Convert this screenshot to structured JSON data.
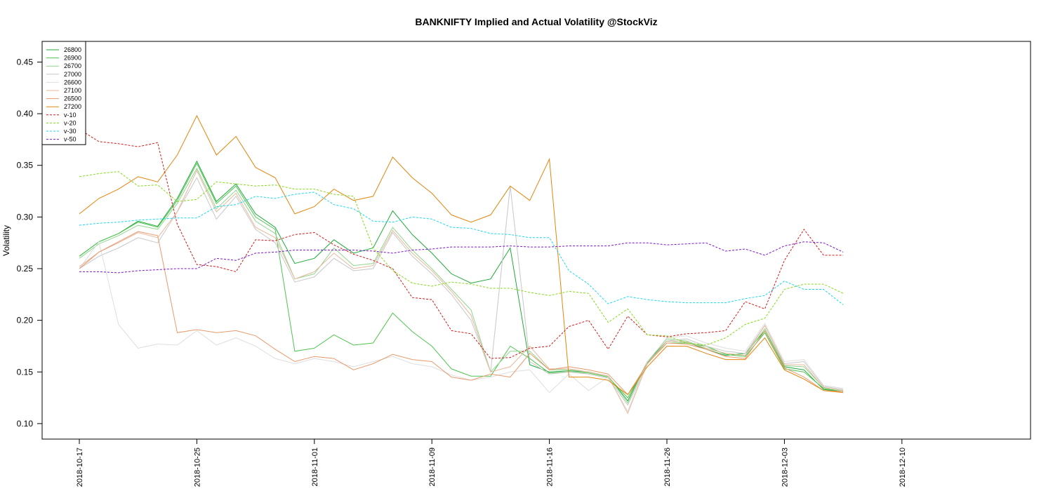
{
  "chart_data": {
    "type": "line",
    "title": "BANKNIFTY Implied and Actual Volatility @StockViz",
    "xlabel": "",
    "ylabel": "Volatility",
    "ylim": [
      0.085,
      0.47
    ],
    "y_ticks": [
      "0.10",
      "0.15",
      "0.20",
      "0.25",
      "0.30",
      "0.35",
      "0.40",
      "0.45"
    ],
    "y_tick_values": [
      0.1,
      0.15,
      0.2,
      0.25,
      0.3,
      0.35,
      0.4,
      0.45
    ],
    "x_ticks": [
      "2018-10-17",
      "2018-10-25",
      "2018-11-01",
      "2018-11-09",
      "2018-11-16",
      "2018-11-26",
      "2018-12-03",
      "2018-12-10"
    ],
    "x_tick_index": [
      0,
      6,
      12,
      18,
      24,
      30,
      36,
      42
    ],
    "grid": false,
    "legend_position": "top-left",
    "series": [
      {
        "name": "26800",
        "color": "#1faa3a",
        "dash": "solid",
        "values": [
          0.262,
          0.276,
          0.284,
          0.296,
          0.291,
          0.318,
          0.354,
          0.315,
          0.332,
          0.303,
          0.29,
          0.255,
          0.26,
          0.278,
          0.265,
          0.27,
          0.306,
          0.283,
          0.265,
          0.245,
          0.236,
          0.24,
          0.27,
          0.157,
          0.15,
          0.151,
          0.15,
          0.146,
          0.122,
          0.16,
          0.18,
          0.179,
          0.172,
          0.166,
          0.168,
          0.19,
          0.155,
          0.152,
          0.133,
          0.131
        ]
      },
      {
        "name": "26900",
        "color": "#4fc44f",
        "dash": "solid",
        "values": [
          0.262,
          0.276,
          0.284,
          0.295,
          0.29,
          0.316,
          0.352,
          0.313,
          0.33,
          0.3,
          0.288,
          0.17,
          0.173,
          0.186,
          0.176,
          0.178,
          0.207,
          0.189,
          0.175,
          0.153,
          0.146,
          0.146,
          0.175,
          0.163,
          0.149,
          0.15,
          0.149,
          0.145,
          0.125,
          0.159,
          0.178,
          0.178,
          0.175,
          0.167,
          0.165,
          0.188,
          0.153,
          0.15,
          0.134,
          0.131
        ]
      },
      {
        "name": "26700",
        "color": "#8fd68f",
        "dash": "solid",
        "values": [
          0.26,
          0.274,
          0.282,
          0.292,
          0.288,
          0.313,
          0.347,
          0.308,
          0.326,
          0.296,
          0.284,
          0.24,
          0.245,
          0.27,
          0.253,
          0.255,
          0.29,
          0.268,
          0.25,
          0.23,
          0.21,
          0.15,
          0.17,
          0.17,
          0.152,
          0.152,
          0.15,
          0.146,
          0.12,
          0.16,
          0.182,
          0.18,
          0.173,
          0.168,
          0.166,
          0.192,
          0.156,
          0.155,
          0.135,
          0.132
        ]
      },
      {
        "name": "27000",
        "color": "#c7c7c7",
        "dash": "solid",
        "values": [
          0.25,
          0.262,
          0.27,
          0.28,
          0.275,
          0.305,
          0.338,
          0.298,
          0.32,
          0.288,
          0.275,
          0.237,
          0.242,
          0.26,
          0.248,
          0.25,
          0.285,
          0.262,
          0.245,
          0.225,
          0.2,
          0.15,
          0.33,
          0.16,
          0.148,
          0.15,
          0.148,
          0.144,
          0.118,
          0.158,
          0.18,
          0.182,
          0.175,
          0.17,
          0.168,
          0.195,
          0.158,
          0.16,
          0.136,
          0.133
        ]
      },
      {
        "name": "26600",
        "color": "#dedede",
        "dash": "solid",
        "values": [
          0.25,
          0.276,
          0.196,
          0.173,
          0.177,
          0.176,
          0.19,
          0.176,
          0.183,
          0.175,
          0.163,
          0.158,
          0.163,
          0.16,
          0.155,
          0.16,
          0.165,
          0.158,
          0.155,
          0.147,
          0.142,
          0.145,
          0.15,
          0.152,
          0.13,
          0.148,
          0.132,
          0.145,
          0.112,
          0.16,
          0.183,
          0.185,
          0.178,
          0.173,
          0.17,
          0.197,
          0.16,
          0.162,
          0.137,
          0.134
        ]
      },
      {
        "name": "27100",
        "color": "#e6b89c",
        "dash": "solid",
        "values": [
          0.252,
          0.266,
          0.275,
          0.285,
          0.28,
          0.305,
          0.345,
          0.305,
          0.323,
          0.29,
          0.28,
          0.24,
          0.247,
          0.265,
          0.25,
          0.253,
          0.287,
          0.265,
          0.248,
          0.228,
          0.205,
          0.15,
          0.155,
          0.175,
          0.153,
          0.153,
          0.15,
          0.146,
          0.11,
          0.158,
          0.18,
          0.179,
          0.173,
          0.168,
          0.166,
          0.195,
          0.157,
          0.157,
          0.135,
          0.132
        ]
      },
      {
        "name": "26500",
        "color": "#e89a6e",
        "dash": "solid",
        "values": [
          0.25,
          0.266,
          0.276,
          0.286,
          0.282,
          0.188,
          0.191,
          0.188,
          0.19,
          0.185,
          0.172,
          0.16,
          0.165,
          0.163,
          0.152,
          0.158,
          0.167,
          0.162,
          0.16,
          0.145,
          0.142,
          0.148,
          0.145,
          0.168,
          0.152,
          0.155,
          0.152,
          0.148,
          0.128,
          0.158,
          0.178,
          0.177,
          0.172,
          0.165,
          0.163,
          0.19,
          0.154,
          0.145,
          0.132,
          0.131
        ]
      },
      {
        "name": "27200",
        "color": "#e3850e",
        "dash": "solid",
        "values": [
          0.303,
          0.318,
          0.327,
          0.339,
          0.334,
          0.36,
          0.398,
          0.36,
          0.378,
          0.348,
          0.338,
          0.303,
          0.31,
          0.327,
          0.316,
          0.32,
          0.358,
          0.338,
          0.323,
          0.302,
          0.295,
          0.302,
          0.33,
          0.316,
          0.356,
          0.145,
          0.145,
          0.142,
          0.128,
          0.155,
          0.175,
          0.175,
          0.168,
          0.162,
          0.162,
          0.183,
          0.152,
          0.143,
          0.132,
          0.13
        ]
      },
      {
        "name": "v-10",
        "color": "#d21919",
        "dash": "dash",
        "values": [
          0.385,
          0.373,
          0.371,
          0.368,
          0.372,
          0.293,
          0.254,
          0.252,
          0.247,
          0.278,
          0.277,
          0.283,
          0.285,
          0.273,
          0.264,
          0.258,
          0.25,
          0.222,
          0.22,
          0.19,
          0.187,
          0.163,
          0.164,
          0.173,
          0.175,
          0.194,
          0.2,
          0.172,
          0.204,
          0.186,
          0.184,
          0.187,
          0.188,
          0.19,
          0.218,
          0.211,
          0.258,
          0.288,
          0.263,
          0.263
        ]
      },
      {
        "name": "v-20",
        "color": "#86d81a",
        "dash": "dash",
        "values": [
          0.339,
          0.342,
          0.344,
          0.33,
          0.331,
          0.315,
          0.317,
          0.334,
          0.332,
          0.33,
          0.331,
          0.327,
          0.327,
          0.322,
          0.32,
          0.27,
          0.248,
          0.236,
          0.233,
          0.237,
          0.235,
          0.231,
          0.231,
          0.227,
          0.224,
          0.228,
          0.226,
          0.198,
          0.211,
          0.186,
          0.185,
          0.178,
          0.176,
          0.183,
          0.196,
          0.202,
          0.23,
          0.235,
          0.235,
          0.226
        ]
      },
      {
        "name": "v-30",
        "color": "#19d7ee",
        "dash": "dash",
        "values": [
          0.292,
          0.294,
          0.295,
          0.297,
          0.298,
          0.299,
          0.299,
          0.31,
          0.312,
          0.32,
          0.318,
          0.322,
          0.324,
          0.312,
          0.308,
          0.296,
          0.295,
          0.3,
          0.298,
          0.29,
          0.289,
          0.284,
          0.283,
          0.28,
          0.28,
          0.248,
          0.235,
          0.216,
          0.223,
          0.22,
          0.218,
          0.217,
          0.217,
          0.217,
          0.221,
          0.224,
          0.238,
          0.23,
          0.23,
          0.215
        ]
      },
      {
        "name": "v-50",
        "color": "#7a17c8",
        "dash": "dash",
        "values": [
          0.247,
          0.247,
          0.246,
          0.248,
          0.249,
          0.25,
          0.25,
          0.26,
          0.258,
          0.265,
          0.266,
          0.268,
          0.268,
          0.268,
          0.268,
          0.267,
          0.265,
          0.268,
          0.269,
          0.271,
          0.271,
          0.271,
          0.272,
          0.271,
          0.271,
          0.272,
          0.272,
          0.272,
          0.275,
          0.275,
          0.273,
          0.274,
          0.275,
          0.267,
          0.269,
          0.263,
          0.272,
          0.276,
          0.275,
          0.266
        ]
      }
    ]
  }
}
